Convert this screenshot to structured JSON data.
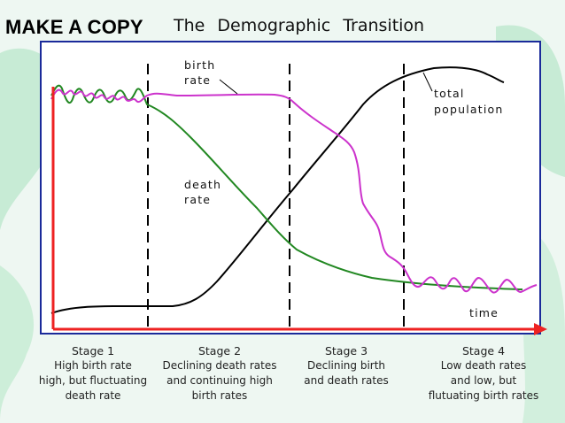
{
  "header": {
    "make_copy": "MAKE A COPY",
    "title": "The Demographic Transition"
  },
  "diagram": {
    "labels": {
      "birth_rate": [
        "birth",
        "rate"
      ],
      "death_rate": [
        "death",
        "rate"
      ],
      "total_population": [
        "total",
        "population"
      ],
      "time": "time"
    },
    "colors": {
      "birth_rate": "#cc33cc",
      "death_rate": "#228822",
      "total_population": "#000000",
      "axes": "#ee2222",
      "frame": "#1a2a9a"
    }
  },
  "stages": [
    {
      "name": "Stage 1",
      "desc": "High birth rate\nhigh, but fluctuating\ndeath rate"
    },
    {
      "name": "Stage 2",
      "desc": "Declining death rates\nand continuing high\nbirth rates"
    },
    {
      "name": "Stage 3",
      "desc": "Declining birth\nand death rates"
    },
    {
      "name": "Stage 4",
      "desc": "Low death rates\nand low, but\nflutuating birth rates"
    }
  ]
}
